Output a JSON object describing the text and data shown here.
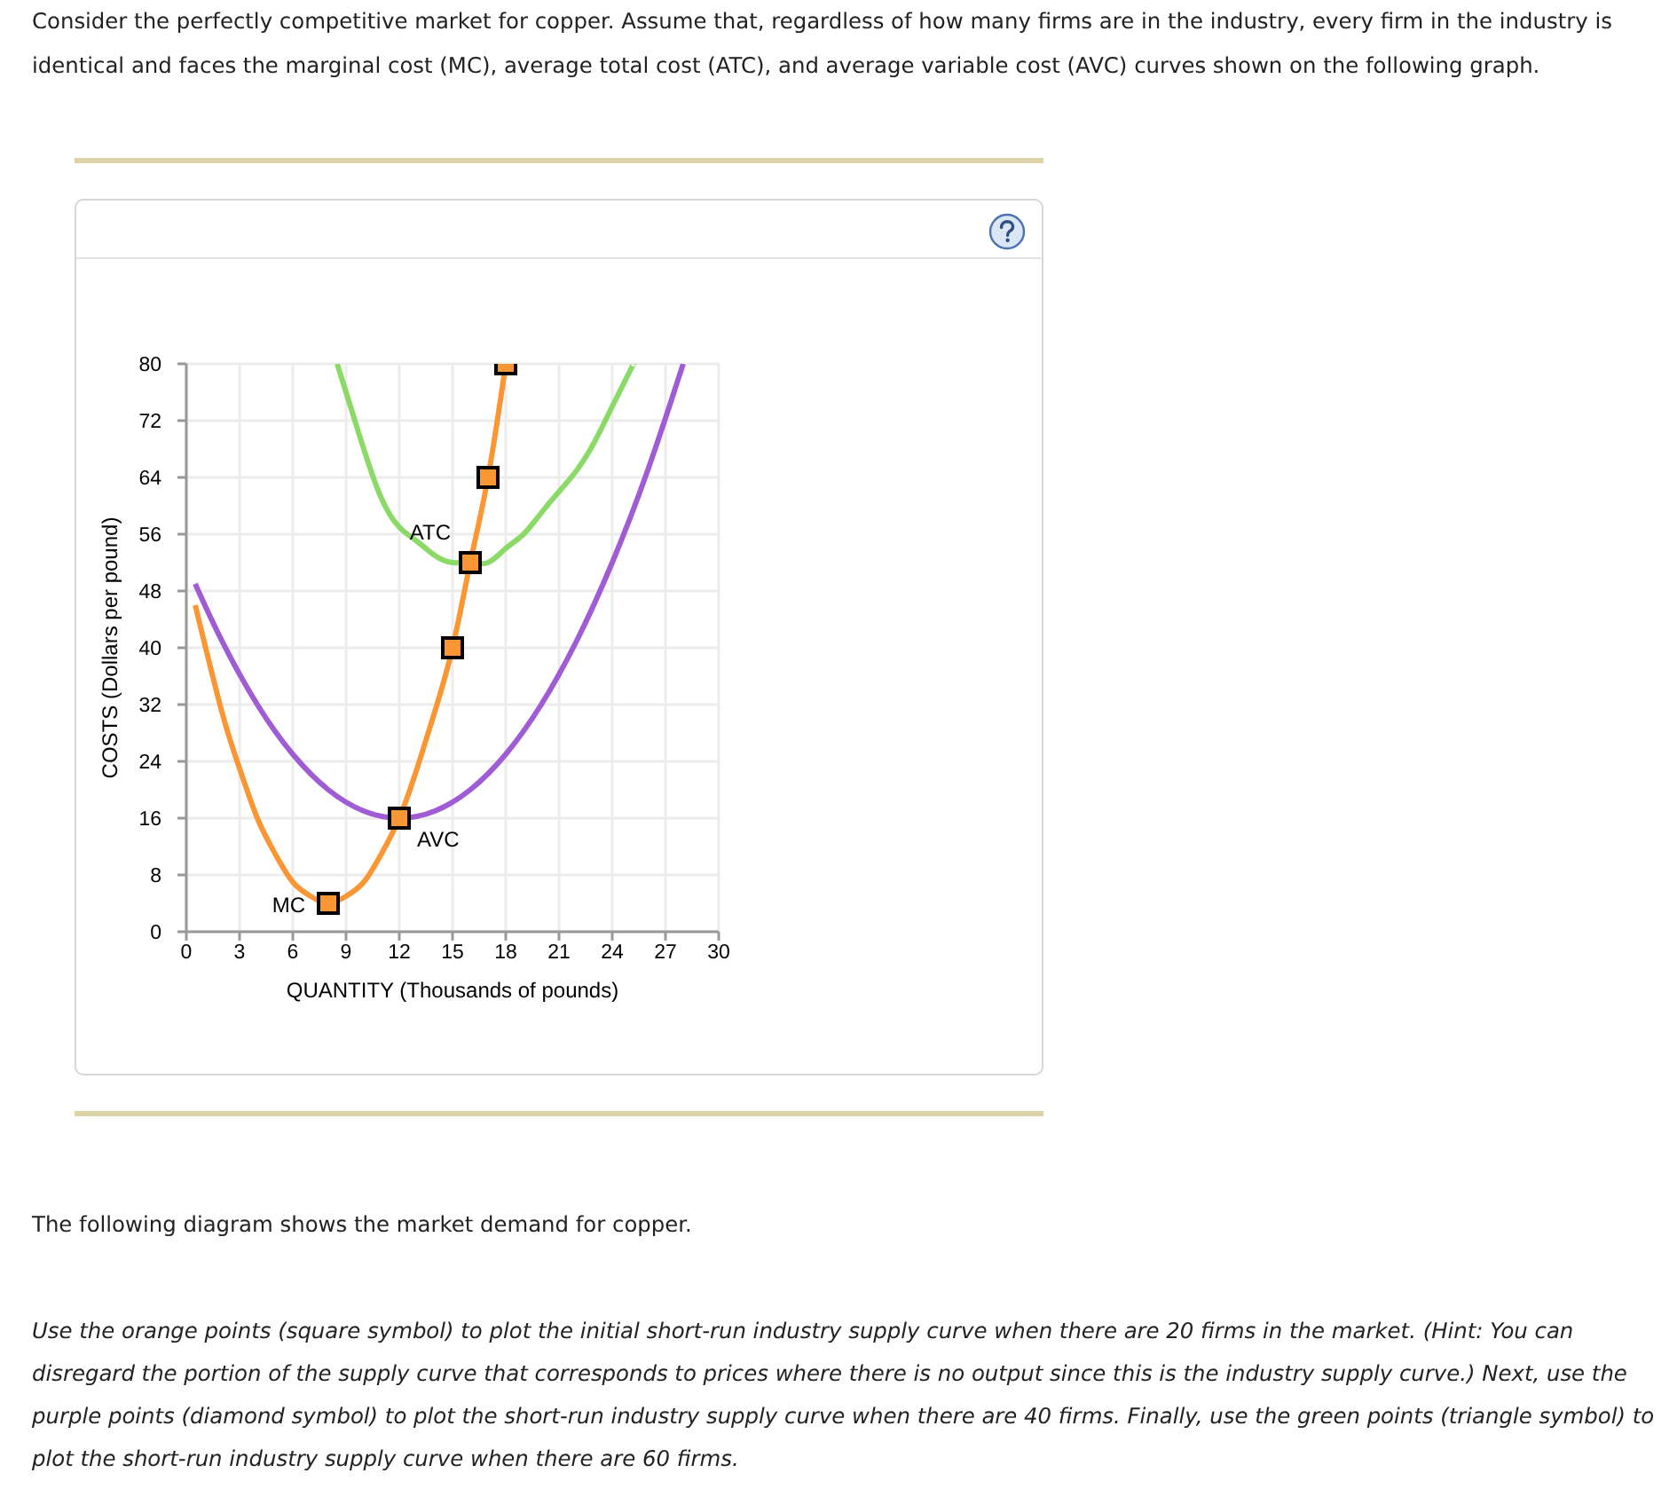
{
  "chart_data": {
    "type": "line",
    "title": "Consider the perfectly competitive market for copper. Assume that, regardless of how many firms are in the industry, every firm in the industry is identical and faces the marginal cost (MC), average total cost (ATC), and average variable cost (AVC) curves shown on the following graph.",
    "xlabel": "QUANTITY (Thousands of pounds)",
    "ylabel": "COSTS (Dollars per pound)",
    "xlim": [
      0,
      30
    ],
    "xticks": [
      0,
      3,
      6,
      9,
      12,
      15,
      18,
      21,
      24,
      27,
      30
    ],
    "ylim": [
      0,
      80
    ],
    "yticks": [
      0,
      8,
      16,
      24,
      32,
      40,
      48,
      56,
      64,
      72,
      80
    ],
    "grid": true,
    "series": [
      {
        "name": "MC",
        "color": "#fb9634",
        "x": [
          0.5,
          2,
          3,
          4,
          5,
          6,
          7,
          8,
          9,
          10,
          11,
          12,
          13,
          14,
          15,
          16,
          17,
          18
        ],
        "values": [
          46,
          31,
          23,
          16,
          11,
          7,
          5,
          4,
          5,
          7,
          11,
          16,
          23,
          31,
          40,
          52,
          64,
          80
        ]
      },
      {
        "name": "AVC",
        "color": "#a05cd4",
        "x": [
          0.5,
          2,
          4,
          6,
          8,
          10,
          12,
          14,
          16,
          18,
          20,
          22,
          24,
          26,
          28
        ],
        "values": [
          49,
          41,
          32,
          25,
          20,
          17,
          16,
          17,
          20,
          25,
          32,
          41,
          52,
          65,
          80
        ]
      },
      {
        "name": "ATC",
        "color": "#8bd967",
        "x": [
          8.5,
          9,
          10,
          11,
          12,
          13,
          14,
          15,
          16,
          17,
          18,
          19,
          20,
          21,
          22,
          23,
          24,
          25,
          25.2
        ],
        "values": [
          80,
          76,
          68,
          61,
          57,
          55,
          53,
          52,
          52,
          52,
          54,
          56,
          59,
          62,
          65,
          69,
          74,
          79,
          80
        ]
      },
      {
        "type": "scatter",
        "color": "#fb9634",
        "marker": "square",
        "x": [
          8,
          12,
          15,
          16,
          17,
          18
        ],
        "values": [
          4,
          16,
          40,
          52,
          64,
          80
        ]
      }
    ],
    "annotations": [
      "The following diagram shows the market demand for copper.",
      "Use the orange points (square symbol) to plot the initial short-run industry supply curve when there are 20 firms in the market. (Hint: You can disregard the portion of the supply curve that corresponds to prices where there is no output since this is the industry supply curve.) Next, use the purple points (diamond symbol) to plot the short-run industry supply curve when there are 40 firms. Finally, use the green points (triangle symbol) to plot the short-run industry supply curve when there are 60 firms."
    ]
  }
}
